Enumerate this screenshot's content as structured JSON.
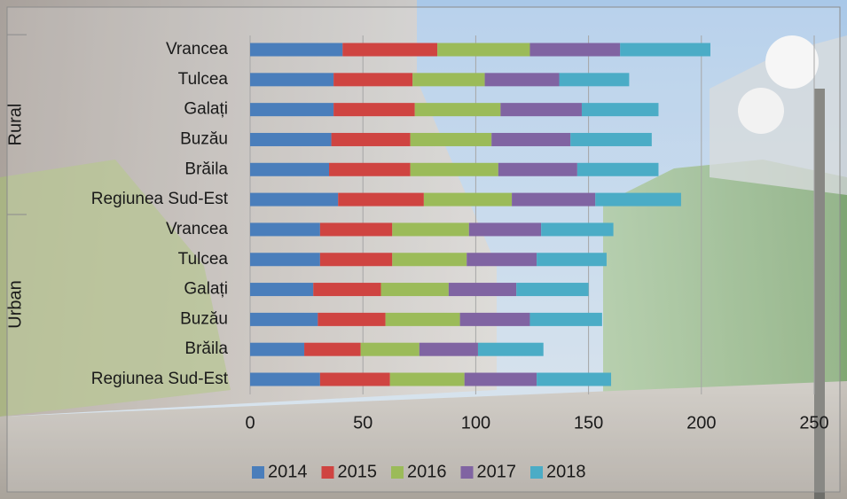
{
  "chart_data": {
    "type": "stacked_barh",
    "groups": [
      {
        "name": "Rural",
        "categories": [
          "Vrancea",
          "Tulcea",
          "Galați",
          "Buzău",
          "Brăila",
          "Regiunea Sud-Est"
        ]
      },
      {
        "name": "Urban",
        "categories": [
          "Vrancea",
          "Tulcea",
          "Galați",
          "Buzău",
          "Brăila",
          "Regiunea Sud-Est"
        ]
      }
    ],
    "series": [
      {
        "name": "2014",
        "color": "#4a7ebb",
        "values": [
          41,
          37,
          37,
          36,
          35,
          39,
          31,
          31,
          28,
          30,
          24,
          31
        ]
      },
      {
        "name": "2015",
        "color": "#cf4441",
        "values": [
          42,
          35,
          36,
          35,
          36,
          38,
          32,
          32,
          30,
          30,
          25,
          31
        ]
      },
      {
        "name": "2016",
        "color": "#9bbb59",
        "values": [
          41,
          32,
          38,
          36,
          39,
          39,
          34,
          33,
          30,
          33,
          26,
          33
        ]
      },
      {
        "name": "2017",
        "color": "#8064a2",
        "values": [
          40,
          33,
          36,
          35,
          35,
          37,
          32,
          31,
          30,
          31,
          26,
          32
        ]
      },
      {
        "name": "2018",
        "color": "#4bacc6",
        "values": [
          40,
          31,
          34,
          36,
          36,
          38,
          32,
          31,
          32,
          32,
          29,
          33
        ]
      }
    ],
    "xlim": [
      0,
      250
    ],
    "xticks": [
      0,
      50,
      100,
      150,
      200,
      250
    ],
    "grid": true,
    "legend": "bottom"
  }
}
